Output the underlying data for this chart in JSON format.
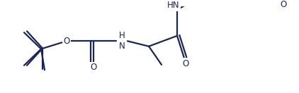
{
  "background_color": "#ffffff",
  "line_color": "#1a2555",
  "line_width": 1.6,
  "font_size": 8.5,
  "figsize": [
    4.22,
    1.32
  ],
  "dpi": 100,
  "xlim": [
    0,
    422
  ],
  "ylim": [
    0,
    132
  ]
}
